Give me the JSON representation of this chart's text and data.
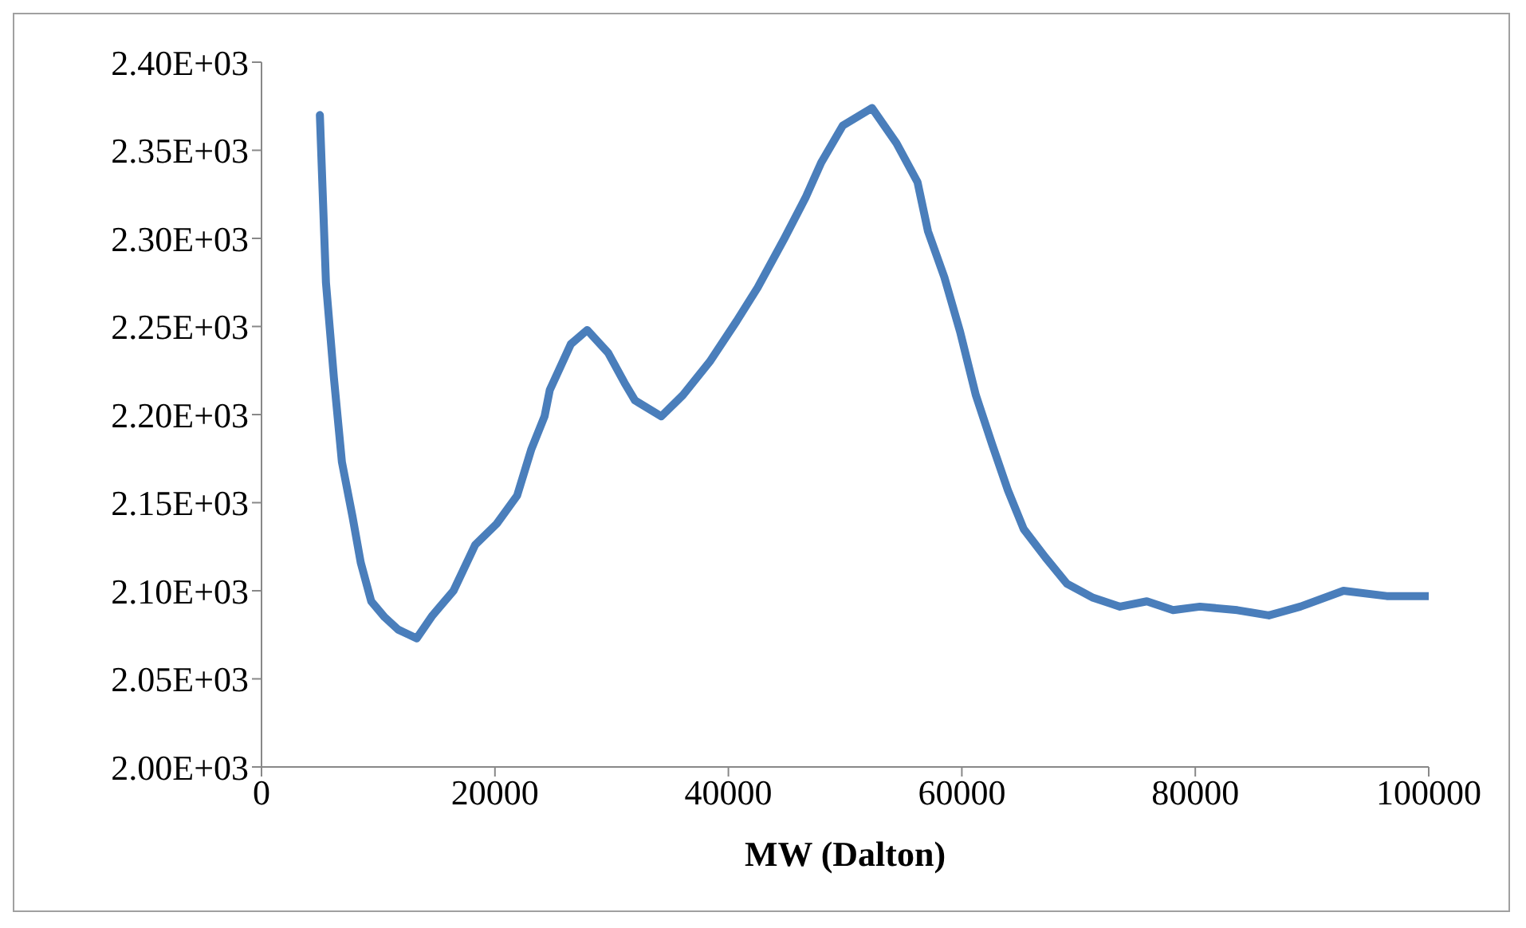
{
  "chart_data": {
    "type": "line",
    "xlabel": "MW (Dalton)",
    "xlim": [
      0,
      100000
    ],
    "xticks": [
      0,
      20000,
      40000,
      60000,
      80000,
      100000
    ],
    "ylim": [
      2000,
      2400
    ],
    "yticks": [
      {
        "value": 2000,
        "label": "2.00E+03"
      },
      {
        "value": 2050,
        "label": "2.05E+03"
      },
      {
        "value": 2100,
        "label": "2.10E+03"
      },
      {
        "value": 2150,
        "label": "2.15E+03"
      },
      {
        "value": 2200,
        "label": "2.20E+03"
      },
      {
        "value": 2250,
        "label": "2.25E+03"
      },
      {
        "value": 2300,
        "label": "2.30E+03"
      },
      {
        "value": 2350,
        "label": "2.35E+03"
      },
      {
        "value": 2400,
        "label": "2.40E+03"
      }
    ],
    "grid": false,
    "legend": false,
    "marker": "none",
    "line_style": "solid",
    "x": [
      5000,
      5520,
      6200,
      6890,
      7800,
      8500,
      9400,
      10550,
      11700,
      13300,
      14650,
      16450,
      18300,
      20150,
      21900,
      23100,
      24250,
      24700,
      26500,
      27900,
      29700,
      31100,
      32000,
      34250,
      36100,
      38400,
      40700,
      42500,
      44800,
      46600,
      47950,
      49800,
      52300,
      54400,
      56200,
      57100,
      58500,
      59850,
      61200,
      62600,
      63950,
      65300,
      67150,
      69000,
      71250,
      73550,
      75850,
      78100,
      80400,
      83600,
      86300,
      89000,
      92700,
      96400,
      100000
    ],
    "series": [
      {
        "color": "#4a7ebb",
        "values": [
          2370,
          2275,
          2221,
          2173,
          2142,
          2116,
          2094,
          2085,
          2078,
          2073,
          2086,
          2100,
          2126,
          2138,
          2154,
          2180,
          2199,
          2214,
          2240,
          2248,
          2235,
          2218,
          2208,
          2199,
          2211,
          2230,
          2253,
          2272,
          2300,
          2323,
          2343,
          2364,
          2374,
          2354,
          2332,
          2304,
          2278,
          2247,
          2211,
          2183,
          2157,
          2135,
          2119,
          2104,
          2096,
          2091,
          2094,
          2089,
          2091,
          2089,
          2086,
          2091,
          2100,
          2097,
          2097
        ]
      }
    ]
  }
}
